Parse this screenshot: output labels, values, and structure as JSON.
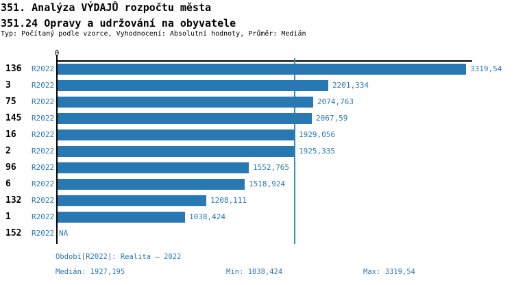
{
  "header": {
    "title_line1": "351. Analýza VÝDAJŮ rozpočtu města",
    "title_line2": "351.24 Opravy a udržování na obyvatele",
    "meta": "Typ: Počítaný podle vzorce, Vyhodnocení: Absolutní hodnoty, Průměr: Medián"
  },
  "chart_data": {
    "type": "bar",
    "orientation": "horizontal",
    "title": "351. Analýza VÝDAJŮ rozpočtu města — 351.24 Opravy a udržování na obyvatele",
    "xlabel": "",
    "ylabel": "",
    "xlim": [
      0,
      3364
    ],
    "zero_tick_label": "0",
    "grid": false,
    "legend_position": "none",
    "series_label": "R2022",
    "categories": [
      "136",
      "3",
      "75",
      "145",
      "16",
      "2",
      "96",
      "6",
      "132",
      "1",
      "152"
    ],
    "values": [
      3319.54,
      2201.334,
      2074.763,
      2067.59,
      1929.056,
      1925.335,
      1552.765,
      1518.924,
      1208.111,
      1038.424,
      null
    ],
    "rows": [
      {
        "id": "136",
        "period": "R2022",
        "value": 3319.54,
        "value_label": "3319,54"
      },
      {
        "id": "3",
        "period": "R2022",
        "value": 2201.334,
        "value_label": "2201,334"
      },
      {
        "id": "75",
        "period": "R2022",
        "value": 2074.763,
        "value_label": "2074,763"
      },
      {
        "id": "145",
        "period": "R2022",
        "value": 2067.59,
        "value_label": "2067,59"
      },
      {
        "id": "16",
        "period": "R2022",
        "value": 1929.056,
        "value_label": "1929,056"
      },
      {
        "id": "2",
        "period": "R2022",
        "value": 1925.335,
        "value_label": "1925,335"
      },
      {
        "id": "96",
        "period": "R2022",
        "value": 1552.765,
        "value_label": "1552,765"
      },
      {
        "id": "6",
        "period": "R2022",
        "value": 1518.924,
        "value_label": "1518,924"
      },
      {
        "id": "132",
        "period": "R2022",
        "value": 1208.111,
        "value_label": "1208,111"
      },
      {
        "id": "1",
        "period": "R2022",
        "value": 1038.424,
        "value_label": "1038,424"
      },
      {
        "id": "152",
        "period": "R2022",
        "value": null,
        "value_label": "NA"
      }
    ],
    "median": 1927.195,
    "min": 1038.424,
    "max": 3319.54,
    "colors": {
      "bar": "#2878b4",
      "median_line": "#3a8abc",
      "label_blue": "#2878b4",
      "axis_black": "#000000"
    }
  },
  "footer": {
    "period": "Období[R2022]: Realita – 2022",
    "median": "Medián: 1927,195",
    "min": "Min: 1038,424",
    "max": "Max: 3319,54"
  }
}
